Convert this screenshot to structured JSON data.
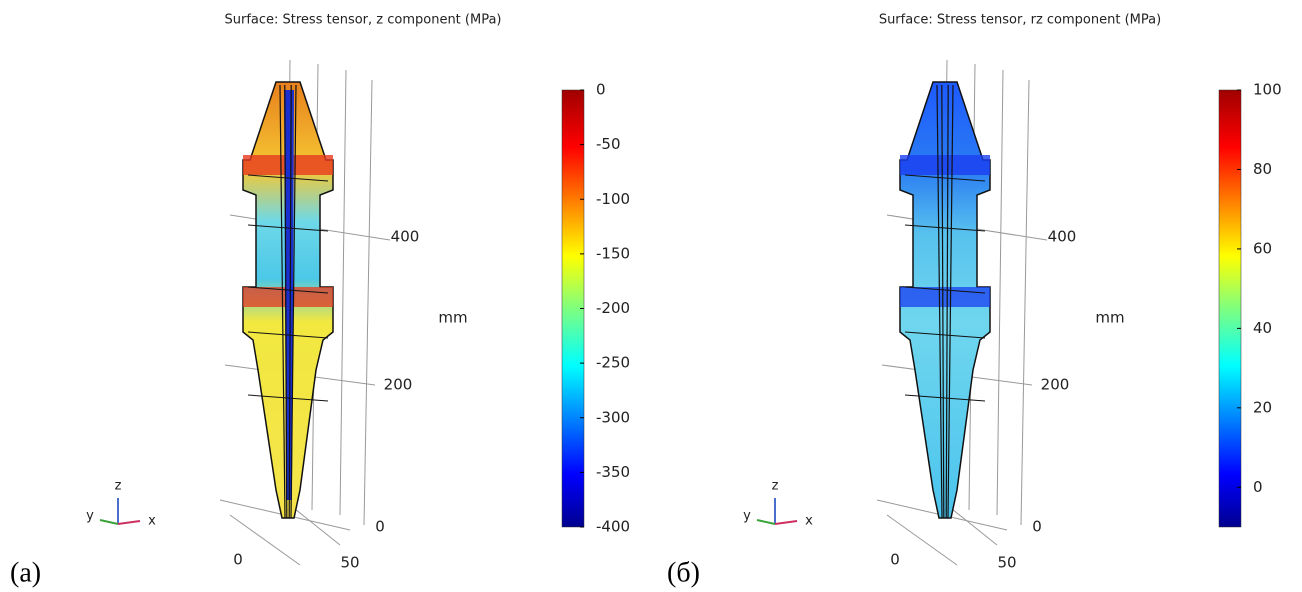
{
  "panels": [
    {
      "title": "Surface: Stress tensor, z component (MPa)",
      "label": "(a)",
      "colorbar": {
        "lim": [
          -400,
          0
        ],
        "ticks": [
          0,
          -50,
          -100,
          -150,
          -200,
          -250,
          -300,
          -350,
          -400
        ]
      },
      "unit": "mm",
      "z_ticks": [
        400,
        200,
        0
      ],
      "x_ticks": [
        0,
        50
      ],
      "triad": [
        "z",
        "y",
        "x"
      ]
    },
    {
      "title": "Surface: Stress tensor, rz component (MPa)",
      "label": "(б)",
      "colorbar": {
        "lim": [
          -10,
          100
        ],
        "ticks": [
          100,
          80,
          60,
          40,
          20,
          0
        ]
      },
      "unit": "mm",
      "z_ticks": [
        400,
        200,
        0
      ],
      "x_ticks": [
        0,
        50
      ],
      "triad": [
        "z",
        "y",
        "x"
      ]
    }
  ]
}
